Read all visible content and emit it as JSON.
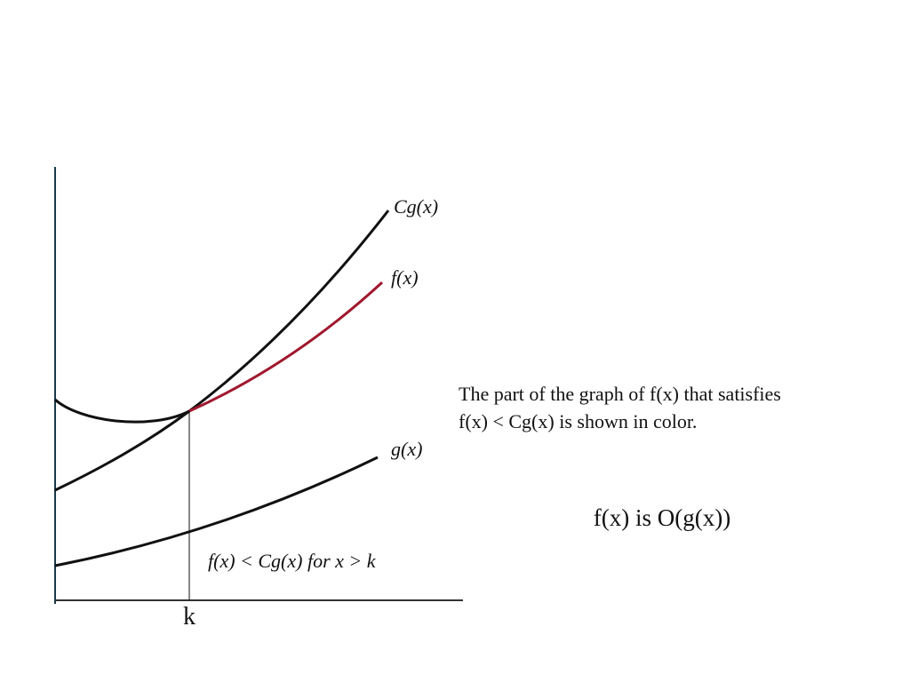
{
  "diagram": {
    "curve_labels": [
      "Cg(x)",
      "f(x)",
      "g(x)"
    ],
    "caption": [
      "The part of the graph of f(x) that satisfies",
      "f(x) < Cg(x) is shown in color."
    ],
    "region_label": "f(x) < Cg(x) for x > k",
    "k_label": "k",
    "conclusion": "f(x) is O(g(x))"
  }
}
